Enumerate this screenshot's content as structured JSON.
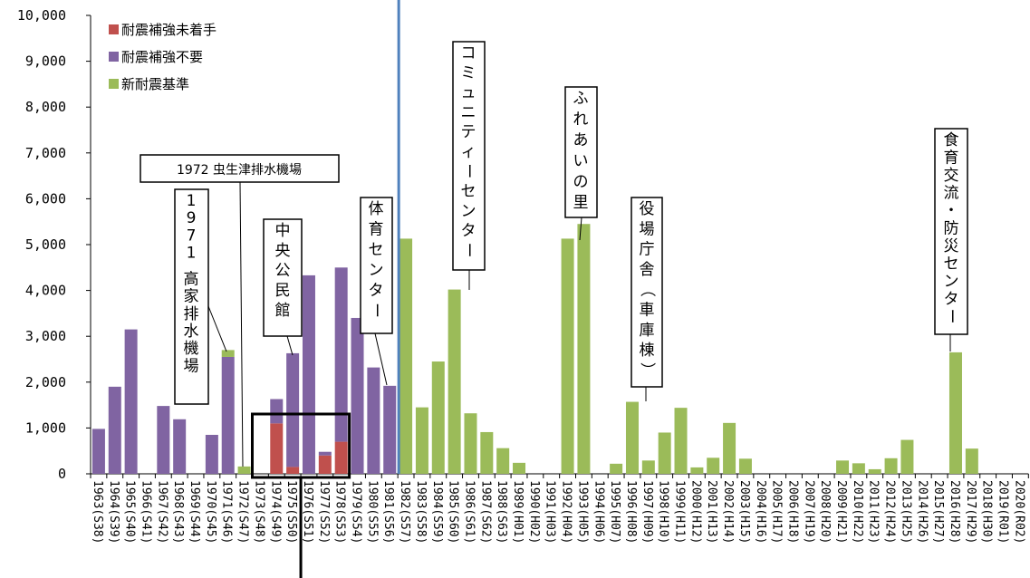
{
  "chart_data": {
    "type": "bar",
    "stacked": true,
    "ylim": [
      0,
      10000
    ],
    "yticks": [
      "0",
      "1,000",
      "2,000",
      "3,000",
      "4,000",
      "5,000",
      "6,000",
      "7,000",
      "8,000",
      "9,000",
      "10,000"
    ],
    "categories": [
      "1963",
      "1964",
      "1965",
      "1966",
      "1967",
      "1968",
      "1969",
      "1970",
      "1971",
      "1972",
      "1973",
      "1974",
      "1975",
      "1976",
      "1977",
      "1978",
      "1979",
      "1980",
      "1981",
      "1982",
      "1983",
      "1984",
      "1985",
      "1986",
      "1987",
      "1988",
      "1989",
      "1990",
      "1991",
      "1992",
      "1993",
      "1994",
      "1995",
      "1996",
      "1997",
      "1998",
      "1999",
      "2000",
      "2001",
      "2002",
      "2003",
      "2004",
      "2005",
      "2006",
      "2007",
      "2008",
      "2009",
      "2010",
      "2011",
      "2012",
      "2013",
      "2014",
      "2015",
      "2016",
      "2017",
      "2018",
      "2019",
      "2020"
    ],
    "category_era": [
      "(S38)",
      "(S39)",
      "(S40)",
      "(S41)",
      "(S42)",
      "(S43)",
      "(S44)",
      "(S45)",
      "(S46)",
      "(S47)",
      "(S48)",
      "(S49)",
      "(S50)",
      "(S51)",
      "(S52)",
      "(S53)",
      "(S54)",
      "(S55)",
      "(S56)",
      "(S57)",
      "(S58)",
      "(S59)",
      "(S60)",
      "(S61)",
      "(S62)",
      "(S63)",
      "(H01)",
      "(H02)",
      "(H03)",
      "(H04)",
      "(H05)",
      "(H06)",
      "(H07)",
      "(H08)",
      "(H09)",
      "(H10)",
      "(H11)",
      "(H12)",
      "(H13)",
      "(H14)",
      "(H15)",
      "(H16)",
      "(H17)",
      "(H18)",
      "(H19)",
      "(H20)",
      "(H21)",
      "(H22)",
      "(H23)",
      "(H24)",
      "(H25)",
      "(H26)",
      "(H27)",
      "(H28)",
      "(H29)",
      "(H30)",
      "(R01)",
      "(R02)"
    ],
    "series": [
      {
        "name": "耐震補強未着手",
        "color": "#C0504D",
        "values": [
          0,
          0,
          0,
          0,
          0,
          0,
          0,
          0,
          0,
          0,
          0,
          1100,
          150,
          0,
          400,
          700,
          0,
          0,
          0,
          0,
          0,
          0,
          0,
          0,
          0,
          0,
          0,
          0,
          0,
          0,
          0,
          0,
          0,
          0,
          0,
          0,
          0,
          0,
          0,
          0,
          0,
          0,
          0,
          0,
          0,
          0,
          0,
          0,
          0,
          0,
          0,
          0,
          0,
          0,
          0,
          0,
          0,
          0
        ]
      },
      {
        "name": "耐震補強不要",
        "color": "#8064A2",
        "values": [
          980,
          1900,
          3150,
          0,
          1480,
          1190,
          0,
          850,
          2550,
          0,
          0,
          530,
          2480,
          4330,
          80,
          3800,
          3400,
          2320,
          1920,
          0,
          0,
          0,
          0,
          0,
          0,
          0,
          0,
          0,
          0,
          0,
          0,
          0,
          0,
          0,
          0,
          0,
          0,
          0,
          0,
          0,
          0,
          0,
          0,
          0,
          0,
          0,
          0,
          0,
          0,
          0,
          0,
          0,
          0,
          0,
          0,
          0,
          0,
          0
        ]
      },
      {
        "name": "新耐震基準",
        "color": "#9BBB59",
        "values": [
          0,
          0,
          0,
          0,
          0,
          0,
          0,
          0,
          150,
          160,
          0,
          0,
          0,
          0,
          0,
          0,
          0,
          0,
          0,
          5130,
          1450,
          2450,
          4020,
          1320,
          910,
          560,
          240,
          0,
          0,
          5130,
          5450,
          0,
          220,
          1570,
          290,
          900,
          1440,
          140,
          350,
          1110,
          330,
          0,
          0,
          0,
          0,
          0,
          290,
          230,
          100,
          340,
          740,
          0,
          0,
          2650,
          550,
          0,
          0,
          0
        ]
      }
    ],
    "annotations": [
      {
        "text": "1972 虫生津排水機場",
        "target": "1972"
      },
      {
        "text": "1971 高家排水機場",
        "target": "1971"
      },
      {
        "text": "中央公民館",
        "target": "1975"
      },
      {
        "text": "体育センター",
        "target": "1981"
      },
      {
        "text": "コミュニティーセンター",
        "target": "1985"
      },
      {
        "text": "ふれあいの里",
        "target": "1992"
      },
      {
        "text": "役場庁舎（車庫棟）",
        "target": "1996"
      },
      {
        "text": "食育交流・防災センター",
        "target": "2016"
      }
    ],
    "divider_after": "1981",
    "highlight_range": [
      "1973",
      "1978"
    ],
    "legend_position": "top-left",
    "grid": false
  }
}
